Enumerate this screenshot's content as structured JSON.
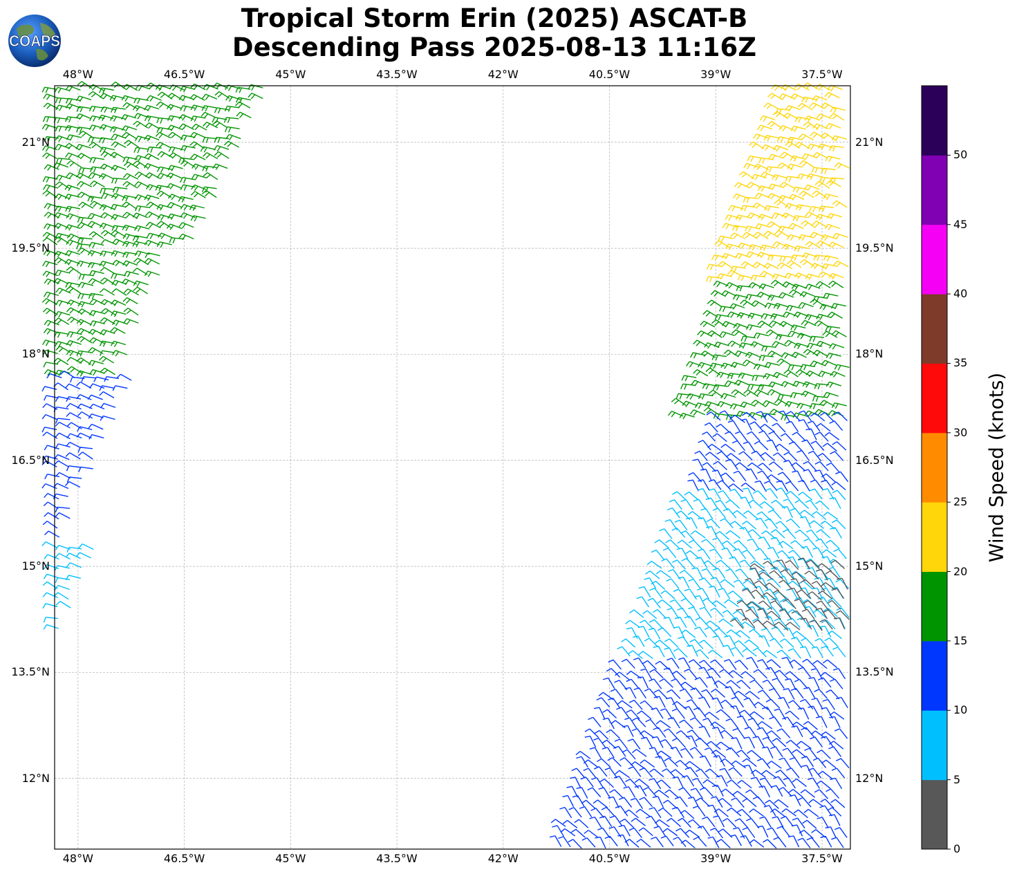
{
  "title": {
    "line1": "Tropical Storm Erin (2025) ASCAT-B",
    "line2": "Descending Pass 2025-08-13 11:16Z"
  },
  "logo": {
    "text": "COAPS",
    "icon": "globe-logo-icon"
  },
  "map": {
    "lon_range": [
      -48.33,
      -37.1
    ],
    "lat_range": [
      11.0,
      21.8
    ],
    "gridlines": true,
    "lon_ticks": [
      {
        "value": -48.0,
        "label": "48°W"
      },
      {
        "value": -46.5,
        "label": "46.5°W"
      },
      {
        "value": -45.0,
        "label": "45°W"
      },
      {
        "value": -43.5,
        "label": "43.5°W"
      },
      {
        "value": -42.0,
        "label": "42°W"
      },
      {
        "value": -40.5,
        "label": "40.5°W"
      },
      {
        "value": -39.0,
        "label": "39°W"
      },
      {
        "value": -37.5,
        "label": "37.5°W"
      }
    ],
    "lat_ticks": [
      {
        "value": 21.0,
        "label": "21°N"
      },
      {
        "value": 19.5,
        "label": "19.5°N"
      },
      {
        "value": 18.0,
        "label": "18°N"
      },
      {
        "value": 16.5,
        "label": "16.5°N"
      },
      {
        "value": 15.0,
        "label": "15°N"
      },
      {
        "value": 13.5,
        "label": "13.5°N"
      },
      {
        "value": 12.0,
        "label": "12°N"
      }
    ]
  },
  "colorbar": {
    "label": "Wind Speed (knots)",
    "bins": [
      {
        "min": 0,
        "max": 5,
        "color": "#585858"
      },
      {
        "min": 5,
        "max": 10,
        "color": "#00bfff"
      },
      {
        "min": 10,
        "max": 15,
        "color": "#0037ff"
      },
      {
        "min": 15,
        "max": 20,
        "color": "#009500"
      },
      {
        "min": 20,
        "max": 25,
        "color": "#ffd60a"
      },
      {
        "min": 25,
        "max": 30,
        "color": "#ff8c00"
      },
      {
        "min": 30,
        "max": 35,
        "color": "#ff0a0a"
      },
      {
        "min": 35,
        "max": 40,
        "color": "#7e3b2a"
      },
      {
        "min": 40,
        "max": 45,
        "color": "#f500f5"
      },
      {
        "min": 45,
        "max": 50,
        "color": "#8000b3"
      },
      {
        "min": 50,
        "max": 55,
        "color": "#2b0059"
      }
    ],
    "ticks": [
      "0",
      "5",
      "10",
      "15",
      "20",
      "25",
      "30",
      "35",
      "40",
      "45",
      "50"
    ]
  },
  "chart_data": {
    "type": "wind_barbs",
    "units": "knots",
    "swaths": [
      {
        "name": "west",
        "regions": [
          {
            "lat_from": 19.6,
            "lat_to": 21.8,
            "speed": 17,
            "lon_west_top": -48.3,
            "lon_east_top": -45.3
          },
          {
            "lat_from": 17.7,
            "lat_to": 19.6,
            "speed": 16,
            "lon_west_top": -48.3,
            "lon_east_top": -46.6
          },
          {
            "lat_from": 15.3,
            "lat_to": 17.7,
            "speed": 12,
            "lon_west_top": -48.2,
            "lon_east_top": -47.2
          },
          {
            "lat_from": 14.0,
            "lat_to": 15.3,
            "speed": 8,
            "lon_west_top": -48.3,
            "lon_east_top": -47.7
          }
        ]
      },
      {
        "name": "east",
        "regions": [
          {
            "lat_from": 19.0,
            "lat_to": 21.8,
            "speed": 21,
            "lon_west_top": -38.0,
            "lon_east_top": -37.1
          },
          {
            "lat_from": 17.1,
            "lat_to": 19.0,
            "speed": 19,
            "lon_west_top": -38.8,
            "lon_east_top": -37.1
          },
          {
            "lat_from": 16.0,
            "lat_to": 17.1,
            "speed": 13,
            "lon_west_top": -38.9,
            "lon_east_top": -37.1
          },
          {
            "lat_from": 13.6,
            "lat_to": 16.0,
            "speed": 8,
            "lon_west_top": -39.4,
            "lon_east_top": -37.1
          },
          {
            "lat_from": 14.1,
            "lat_to": 15.0,
            "speed": 3,
            "lon_west_top": -38.3,
            "lon_east_top": -37.1
          },
          {
            "lat_from": 11.0,
            "lat_to": 13.6,
            "speed": 12,
            "lon_west_top": -40.3,
            "lon_east_top": -37.1
          }
        ]
      }
    ]
  }
}
